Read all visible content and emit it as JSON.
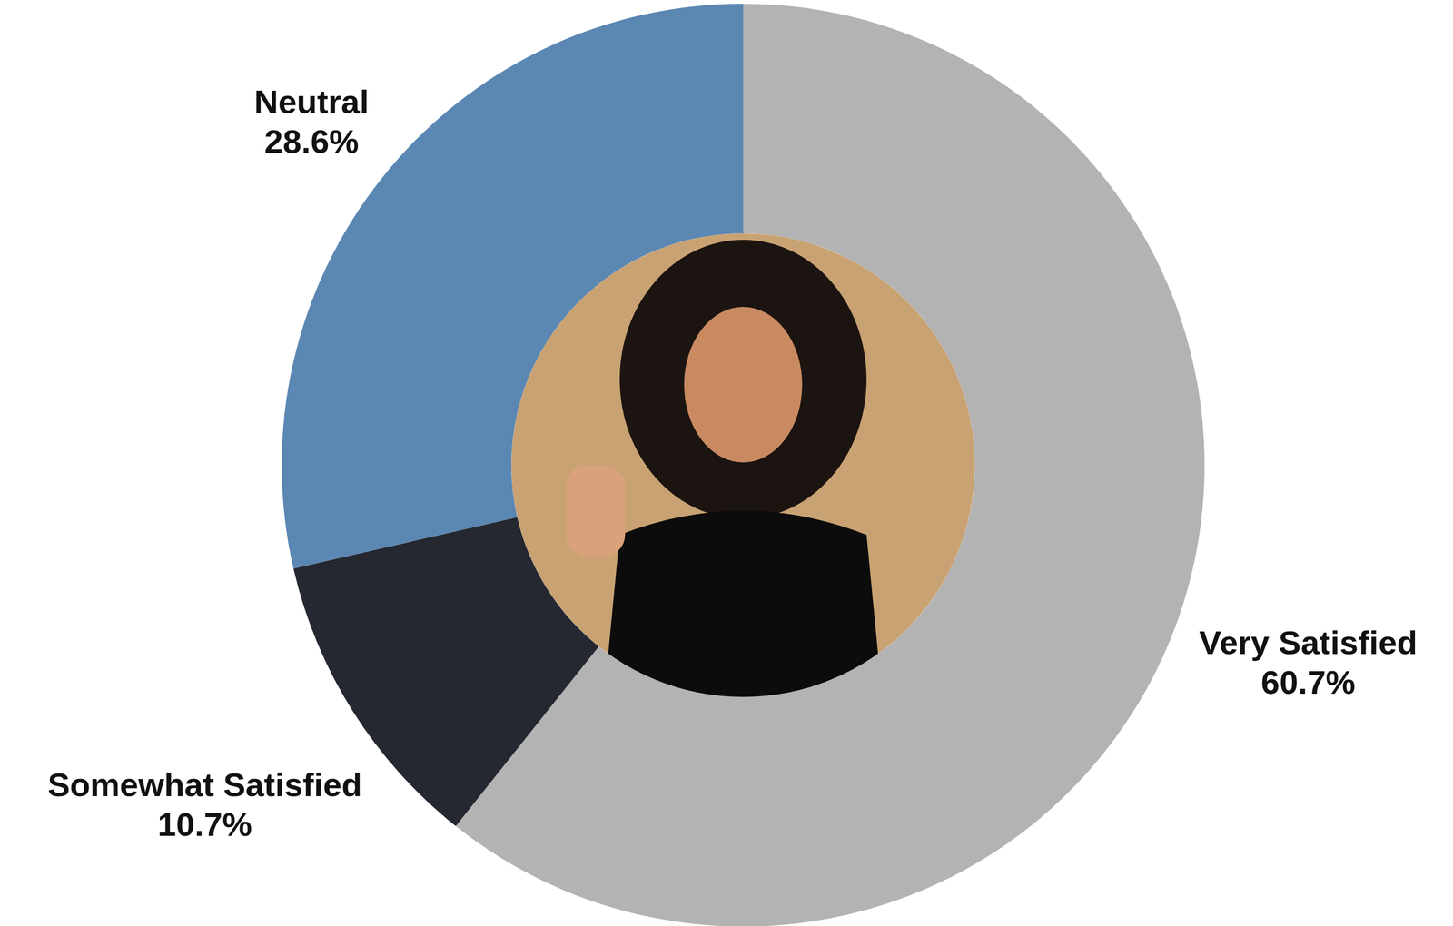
{
  "chart_data": {
    "type": "donut",
    "categories": [
      "Very Satisfied",
      "Somewhat Satisfied",
      "Neutral"
    ],
    "values": [
      60.7,
      10.7,
      28.6
    ],
    "value_labels": [
      "60.7%",
      "10.7%",
      "28.6%"
    ],
    "colors": [
      "#b3b3b3",
      "#252830",
      "#5b87b3"
    ],
    "data_labels": true
  }
}
